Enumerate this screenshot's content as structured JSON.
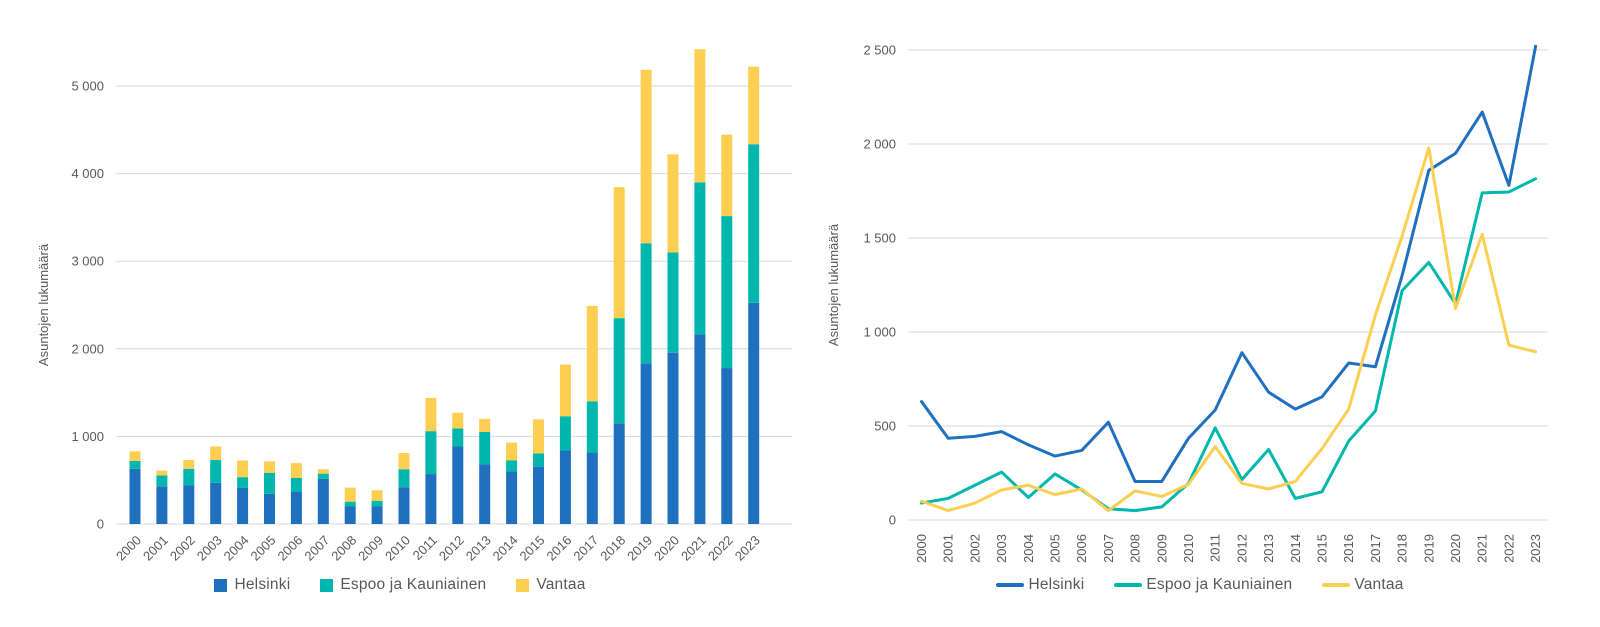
{
  "chart_data": [
    {
      "id": "bar-chart",
      "type": "bar",
      "stacked": true,
      "title": "",
      "xlabel": "",
      "ylabel": "Asuntojen lukumäärä",
      "ylim": [
        0,
        5500
      ],
      "grid": true,
      "legend_position": "bottom",
      "ytick_values": [
        0,
        1000,
        2000,
        3000,
        4000,
        5000
      ],
      "ytick_labels": [
        "0",
        "1 000",
        "2 000",
        "3 000",
        "4 000",
        "5 000"
      ],
      "categories": [
        "2000",
        "2001",
        "2002",
        "2003",
        "2004",
        "2005",
        "2006",
        "2007",
        "2008",
        "2009",
        "2010",
        "2011",
        "2012",
        "2013",
        "2014",
        "2015",
        "2016",
        "2017",
        "2018",
        "2019",
        "2020",
        "2021",
        "2022",
        "2023"
      ],
      "series": [
        {
          "name": "Helsinki",
          "color": "#2070c0",
          "values": [
            630,
            430,
            440,
            470,
            415,
            345,
            365,
            515,
            200,
            200,
            420,
            570,
            885,
            680,
            600,
            655,
            840,
            820,
            1150,
            1835,
            1955,
            2165,
            1780,
            2525
          ]
        },
        {
          "name": "Espoo ja Kauniainen",
          "color": "#00b7ad",
          "values": [
            90,
            125,
            190,
            260,
            120,
            240,
            160,
            60,
            55,
            65,
            205,
            490,
            205,
            370,
            125,
            150,
            390,
            580,
            1200,
            1370,
            1145,
            1735,
            1735,
            1810
          ]
        },
        {
          "name": "Vantaa",
          "color": "#fccf53",
          "values": [
            110,
            55,
            100,
            155,
            190,
            130,
            170,
            50,
            160,
            120,
            185,
            380,
            180,
            150,
            205,
            390,
            590,
            1090,
            1495,
            1980,
            1120,
            1520,
            930,
            885
          ]
        }
      ]
    },
    {
      "id": "line-chart",
      "type": "line",
      "stacked": false,
      "title": "",
      "xlabel": "",
      "ylabel": "Asuntojen lukumäärä",
      "ylim": [
        0,
        2600
      ],
      "grid": true,
      "legend_position": "bottom",
      "ytick_values": [
        0,
        500,
        1000,
        1500,
        2000,
        2500
      ],
      "ytick_labels": [
        "0",
        "500",
        "1 000",
        "1 500",
        "2 000",
        "2 500"
      ],
      "categories": [
        "2000",
        "2001",
        "2002",
        "2003",
        "2004",
        "2005",
        "2006",
        "2007",
        "2008",
        "2009",
        "2010",
        "2011",
        "2012",
        "2013",
        "2014",
        "2015",
        "2016",
        "2017",
        "2018",
        "2019",
        "2020",
        "2021",
        "2022",
        "2023"
      ],
      "series": [
        {
          "name": "Helsinki",
          "color": "#2070c0",
          "values": [
            630,
            435,
            445,
            470,
            400,
            340,
            370,
            520,
            205,
            205,
            435,
            585,
            890,
            680,
            590,
            655,
            835,
            815,
            1300,
            1860,
            1950,
            2170,
            1780,
            2520
          ]
        },
        {
          "name": "Espoo ja Kauniainen",
          "color": "#00b7ad",
          "values": [
            90,
            115,
            185,
            255,
            120,
            245,
            160,
            60,
            50,
            70,
            195,
            490,
            215,
            375,
            115,
            150,
            420,
            580,
            1220,
            1370,
            1150,
            1740,
            1745,
            1815
          ]
        },
        {
          "name": "Vantaa",
          "color": "#fccf53",
          "values": [
            100,
            50,
            90,
            160,
            185,
            135,
            165,
            50,
            155,
            125,
            190,
            390,
            195,
            165,
            205,
            380,
            590,
            1090,
            1510,
            1980,
            1125,
            1520,
            930,
            895
          ]
        }
      ]
    }
  ],
  "style": {
    "gridline_color": "#d9d9d9",
    "axis_text_color": "#595959",
    "background_color": "#ffffff"
  }
}
